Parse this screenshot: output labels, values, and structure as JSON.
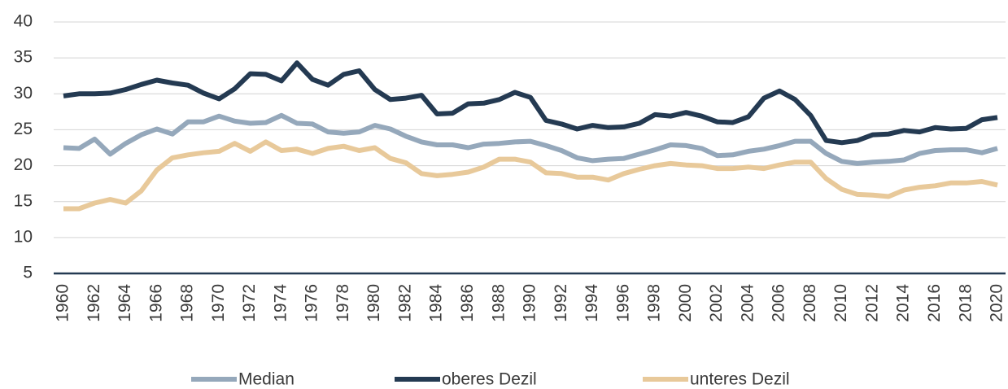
{
  "chart_data": {
    "type": "line",
    "x": [
      1960,
      1961,
      1962,
      1963,
      1964,
      1965,
      1966,
      1967,
      1968,
      1969,
      1970,
      1971,
      1972,
      1973,
      1974,
      1975,
      1976,
      1977,
      1978,
      1979,
      1980,
      1981,
      1982,
      1983,
      1984,
      1985,
      1986,
      1987,
      1988,
      1989,
      1990,
      1991,
      1992,
      1993,
      1994,
      1995,
      1996,
      1997,
      1998,
      1999,
      2000,
      2001,
      2002,
      2003,
      2004,
      2005,
      2006,
      2007,
      2008,
      2009,
      2010,
      2011,
      2012,
      2013,
      2014,
      2015,
      2016,
      2017,
      2018,
      2019,
      2020
    ],
    "xlim": [
      1960,
      2020
    ],
    "xticks": [
      1960,
      1962,
      1964,
      1966,
      1968,
      1970,
      1972,
      1974,
      1976,
      1978,
      1980,
      1982,
      1984,
      1986,
      1988,
      1990,
      1992,
      1994,
      1996,
      1998,
      2000,
      2002,
      2004,
      2006,
      2008,
      2010,
      2012,
      2014,
      2016,
      2018,
      2020
    ],
    "ylim": [
      5,
      40
    ],
    "yticks": [
      5,
      10,
      15,
      20,
      25,
      30,
      35,
      40
    ],
    "grid": true,
    "legend": "bottom",
    "series": [
      {
        "name": "Median",
        "color": "#95a8bb",
        "values": [
          22.5,
          22.4,
          23.7,
          21.6,
          23.1,
          24.3,
          25.1,
          24.4,
          26.1,
          26.1,
          26.9,
          26.2,
          25.9,
          26.0,
          27.0,
          25.9,
          25.8,
          24.7,
          24.5,
          24.7,
          25.6,
          25.1,
          24.1,
          23.3,
          22.9,
          22.9,
          22.5,
          23.0,
          23.1,
          23.3,
          23.4,
          22.8,
          22.1,
          21.1,
          20.7,
          20.9,
          21.0,
          21.6,
          22.2,
          22.9,
          22.8,
          22.4,
          21.4,
          21.5,
          22.0,
          22.3,
          22.8,
          23.4,
          23.4,
          21.7,
          20.6,
          20.3,
          20.5,
          20.6,
          20.8,
          21.7,
          22.1,
          22.2,
          22.2,
          21.8,
          22.4
        ]
      },
      {
        "name": "oberes Dezil",
        "color": "#243a52",
        "values": [
          29.7,
          30.0,
          30.0,
          30.1,
          30.6,
          31.3,
          31.9,
          31.5,
          31.2,
          30.1,
          29.3,
          30.7,
          32.8,
          32.7,
          31.8,
          34.3,
          32.0,
          31.2,
          32.7,
          33.2,
          30.6,
          29.2,
          29.4,
          29.8,
          27.2,
          27.3,
          28.6,
          28.7,
          29.2,
          30.2,
          29.5,
          26.3,
          25.8,
          25.1,
          25.6,
          25.3,
          25.4,
          25.9,
          27.1,
          26.9,
          27.4,
          26.9,
          26.1,
          26.0,
          26.8,
          29.4,
          30.4,
          29.2,
          27.0,
          23.5,
          23.2,
          23.5,
          24.3,
          24.4,
          24.9,
          24.7,
          25.3,
          25.1,
          25.2,
          26.4,
          26.7
        ]
      },
      {
        "name": "unteres Dezil",
        "color": "#e8c99a",
        "values": [
          14.0,
          14.0,
          14.8,
          15.3,
          14.8,
          16.5,
          19.4,
          21.1,
          21.5,
          21.8,
          22.0,
          23.1,
          22.0,
          23.3,
          22.1,
          22.3,
          21.7,
          22.4,
          22.7,
          22.1,
          22.5,
          21.0,
          20.4,
          18.9,
          18.6,
          18.8,
          19.1,
          19.8,
          20.9,
          20.9,
          20.5,
          19.0,
          18.9,
          18.4,
          18.4,
          18.0,
          18.9,
          19.5,
          20.0,
          20.3,
          20.1,
          20.0,
          19.6,
          19.6,
          19.8,
          19.6,
          20.1,
          20.5,
          20.5,
          18.2,
          16.7,
          16.0,
          15.9,
          15.7,
          16.6,
          17.0,
          17.2,
          17.6,
          17.6,
          17.8,
          17.3
        ]
      }
    ]
  }
}
